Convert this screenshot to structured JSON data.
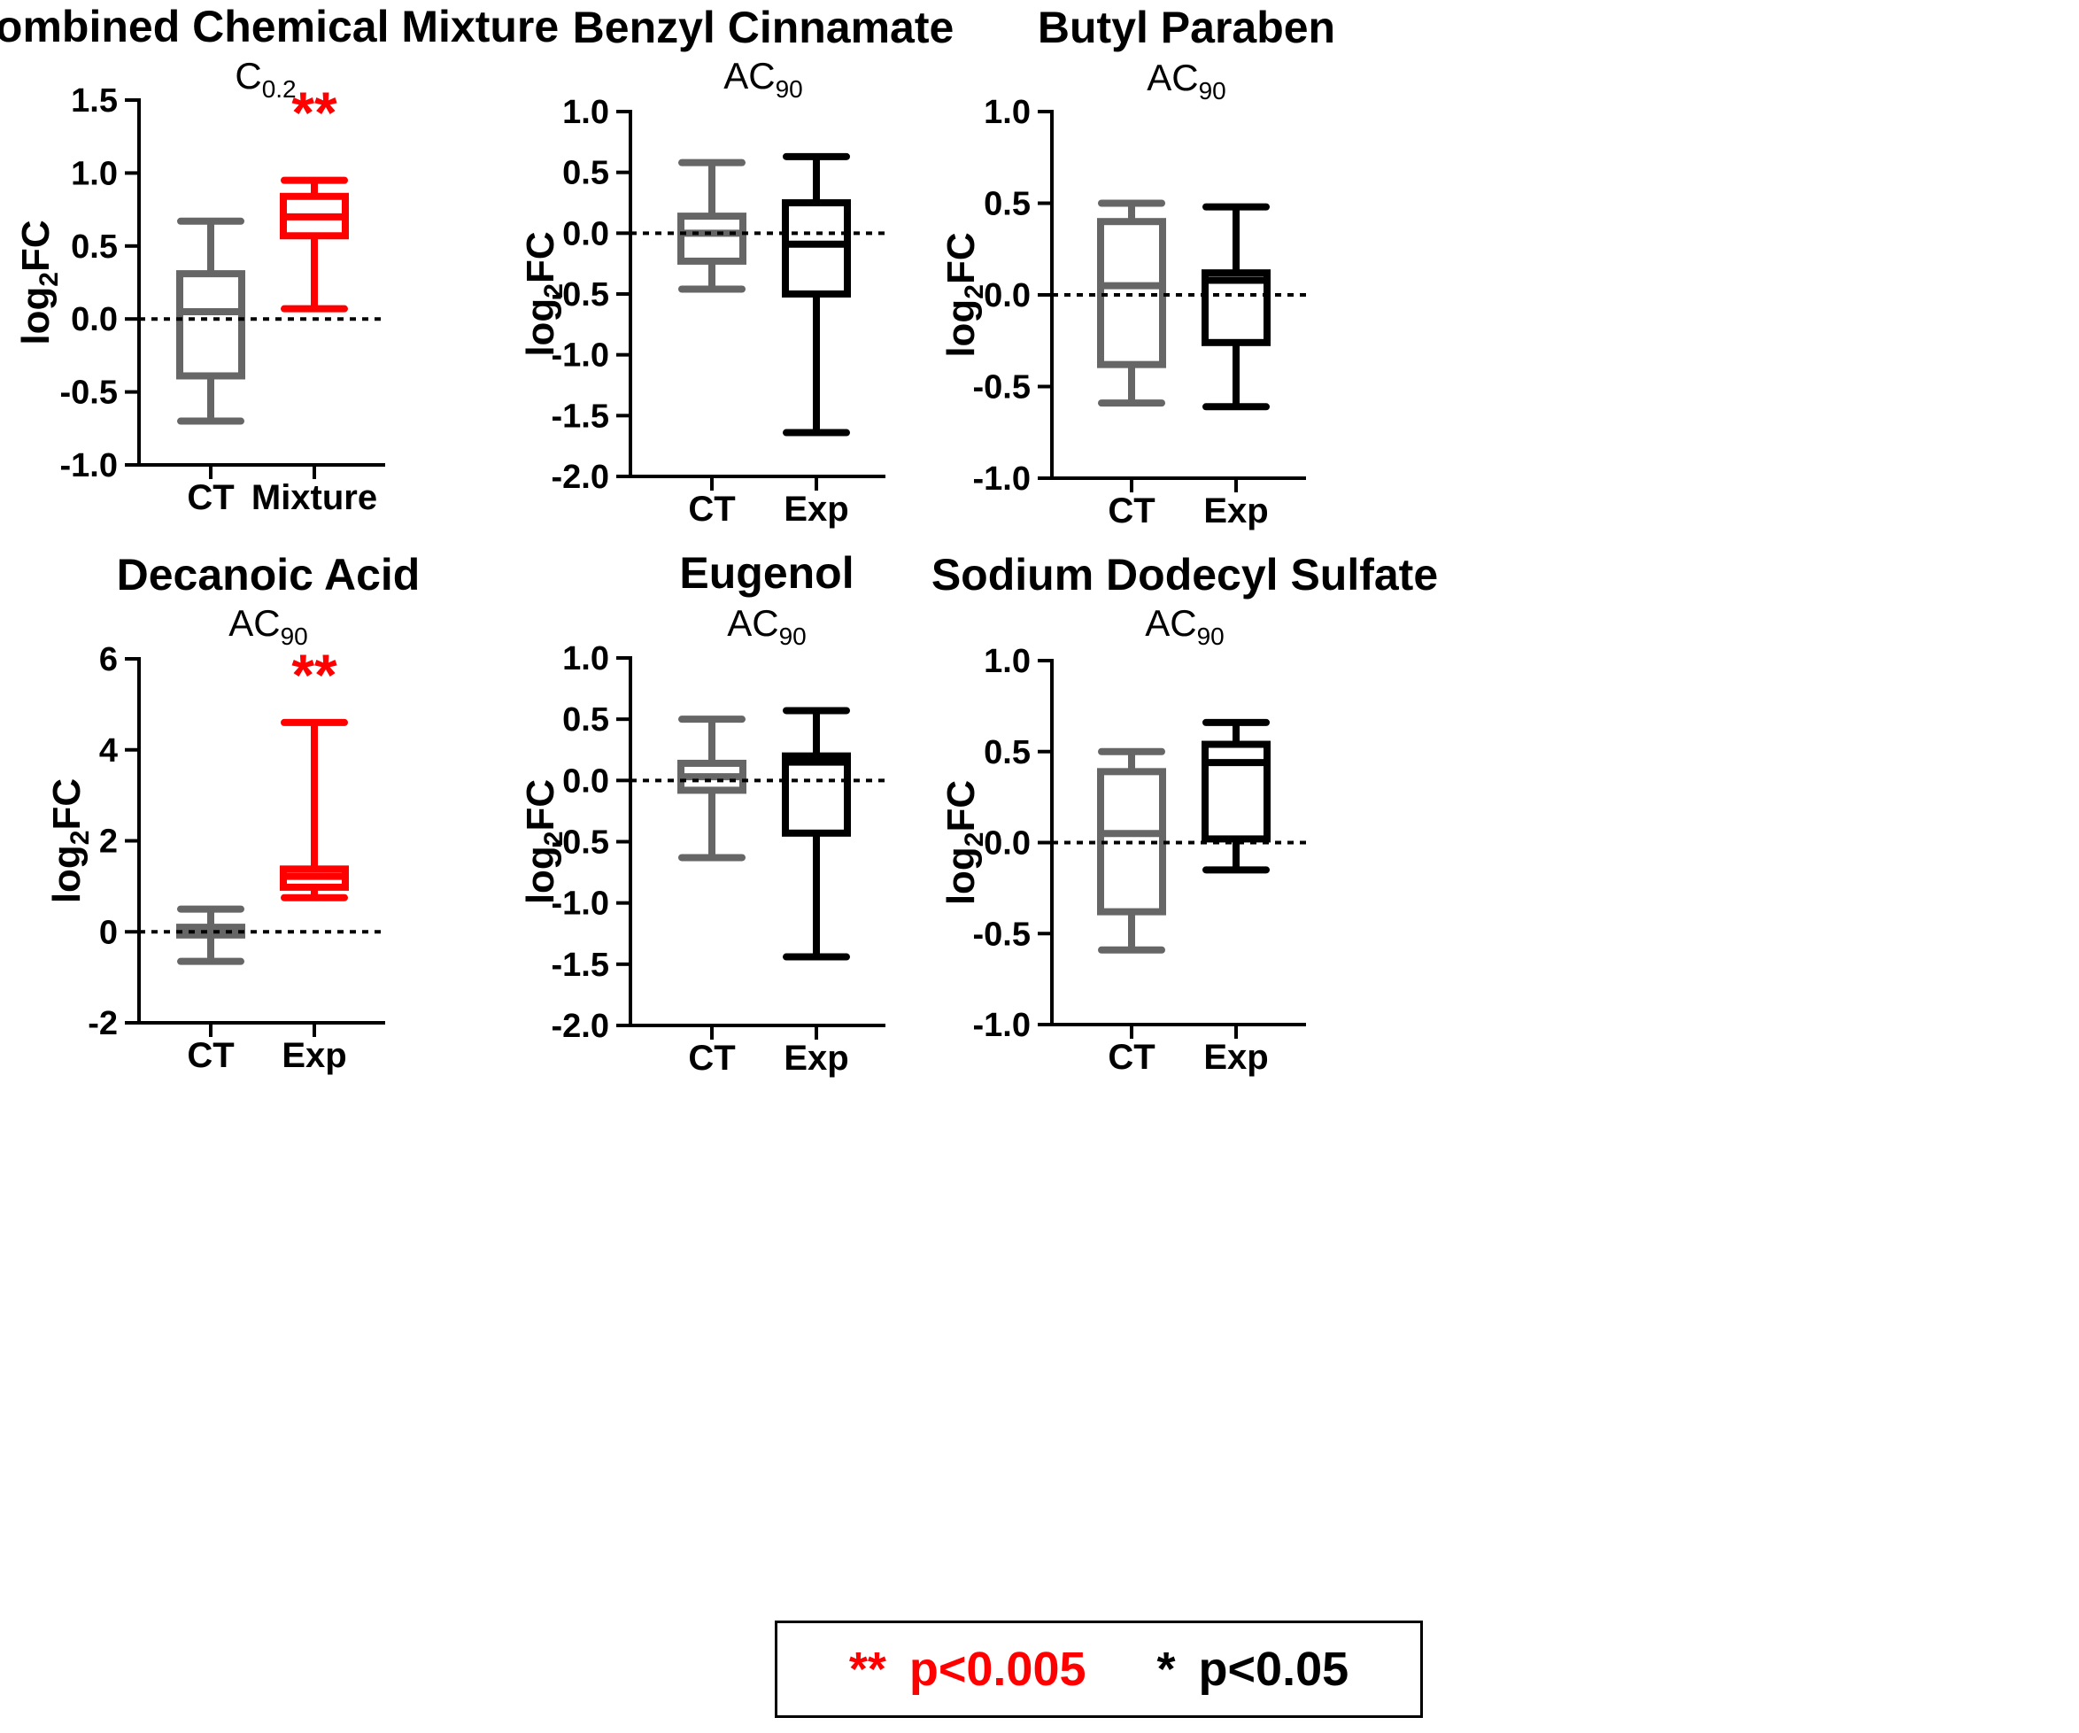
{
  "colors": {
    "control": "#666666",
    "significant": "#ff0000",
    "treatment": "#000000"
  },
  "legend": [
    {
      "symbol": "**",
      "label": "p<0.005",
      "color": "#ff0000"
    },
    {
      "symbol": "*",
      "label": "p<0.05",
      "color": "#000000"
    }
  ],
  "chart_data": [
    {
      "type": "boxplot",
      "title": "Combined Chemical Mixture",
      "subtitle": "C",
      "subtitle_sub": "0.2",
      "ylabel": "log",
      "ylabel_sub": "2",
      "ylabel_tail": "FC",
      "ylim": [
        -1.0,
        1.5
      ],
      "yticks": [
        1.5,
        1.0,
        0.5,
        0.0,
        -0.5,
        -1.0
      ],
      "ytick_labels": [
        "1.5",
        "1.0",
        "0.5",
        "0.0",
        "-0.5",
        "-1.0"
      ],
      "reference_line": 0,
      "categories": [
        "CT",
        "Mixture"
      ],
      "boxes": [
        {
          "name": "CT",
          "min": -0.7,
          "q1": -0.39,
          "median": 0.05,
          "q3": 0.31,
          "max": 0.67,
          "color": "#666666"
        },
        {
          "name": "Mixture",
          "min": 0.07,
          "q1": 0.57,
          "median": 0.7,
          "q3": 0.84,
          "max": 0.95,
          "color": "#ff0000",
          "significance": "**"
        }
      ]
    },
    {
      "type": "boxplot",
      "title": "Benzyl Cinnamate",
      "subtitle": "AC",
      "subtitle_sub": "90",
      "ylabel": "log",
      "ylabel_sub": "2",
      "ylabel_tail": "FC",
      "ylim": [
        -2.0,
        1.0
      ],
      "yticks": [
        1.0,
        0.5,
        0.0,
        -0.5,
        -1.0,
        -1.5,
        -2.0
      ],
      "ytick_labels": [
        "1.0",
        "0.5",
        "0.0",
        "-0.5",
        "-1.0",
        "-1.5",
        "-2.0"
      ],
      "reference_line": 0,
      "categories": [
        "CT",
        "Exp"
      ],
      "boxes": [
        {
          "name": "CT",
          "min": -0.46,
          "q1": -0.23,
          "median": 0.0,
          "q3": 0.14,
          "max": 0.58,
          "color": "#666666"
        },
        {
          "name": "Exp",
          "min": -1.64,
          "q1": -0.5,
          "median": -0.09,
          "q3": 0.25,
          "max": 0.63,
          "color": "#000000"
        }
      ]
    },
    {
      "type": "boxplot",
      "title": "Butyl Paraben",
      "subtitle": "AC",
      "subtitle_sub": "90",
      "ylabel": "log",
      "ylabel_sub": "2",
      "ylabel_tail": "FC",
      "ylim": [
        -1.0,
        1.0
      ],
      "yticks": [
        1.0,
        0.5,
        0.0,
        -0.5,
        -1.0
      ],
      "ytick_labels": [
        "1.0",
        "0.5",
        "0.0",
        "-0.5",
        "-1.0"
      ],
      "reference_line": 0,
      "categories": [
        "CT",
        "Exp"
      ],
      "boxes": [
        {
          "name": "CT",
          "min": -0.59,
          "q1": -0.38,
          "median": 0.05,
          "q3": 0.4,
          "max": 0.5,
          "color": "#666666"
        },
        {
          "name": "Exp",
          "min": -0.61,
          "q1": -0.26,
          "median": 0.08,
          "q3": 0.12,
          "max": 0.48,
          "color": "#000000"
        }
      ]
    },
    {
      "type": "boxplot",
      "title": "Decanoic Acid",
      "subtitle": "AC",
      "subtitle_sub": "90",
      "ylabel": "log",
      "ylabel_sub": "2",
      "ylabel_tail": "FC",
      "ylim": [
        -2,
        6
      ],
      "yticks": [
        6,
        4,
        2,
        0,
        -2
      ],
      "ytick_labels": [
        "6",
        "4",
        "2",
        "0",
        "-2"
      ],
      "reference_line": 0,
      "categories": [
        "CT",
        "Exp"
      ],
      "boxes": [
        {
          "name": "CT",
          "min": -0.65,
          "q1": -0.07,
          "median": 0.03,
          "q3": 0.1,
          "max": 0.5,
          "color": "#666666"
        },
        {
          "name": "Exp",
          "min": 0.75,
          "q1": 0.98,
          "median": 1.22,
          "q3": 1.38,
          "max": 4.6,
          "color": "#ff0000",
          "significance": "**"
        }
      ]
    },
    {
      "type": "boxplot",
      "title": "Eugenol",
      "subtitle": "AC",
      "subtitle_sub": "90",
      "ylabel": "log",
      "ylabel_sub": "2",
      "ylabel_tail": "FC",
      "ylim": [
        -2.0,
        1.0
      ],
      "yticks": [
        1.0,
        0.5,
        0.0,
        -0.5,
        -1.0,
        -1.5,
        -2.0
      ],
      "ytick_labels": [
        "1.0",
        "0.5",
        "0.0",
        "-0.5",
        "-1.0",
        "-1.5",
        "-2.0"
      ],
      "reference_line": 0,
      "categories": [
        "CT",
        "Exp"
      ],
      "boxes": [
        {
          "name": "CT",
          "min": -0.63,
          "q1": -0.08,
          "median": 0.03,
          "q3": 0.14,
          "max": 0.5,
          "color": "#666666"
        },
        {
          "name": "Exp",
          "min": -1.44,
          "q1": -0.43,
          "median": 0.15,
          "q3": 0.2,
          "max": 0.57,
          "color": "#000000"
        }
      ]
    },
    {
      "type": "boxplot",
      "title": "Sodium Dodecyl Sulfate",
      "subtitle": "AC",
      "subtitle_sub": "90",
      "ylabel": "log",
      "ylabel_sub": "2",
      "ylabel_tail": "FC",
      "ylim": [
        -1.0,
        1.0
      ],
      "yticks": [
        1.0,
        0.5,
        0.0,
        -0.5,
        -1.0
      ],
      "ytick_labels": [
        "1.0",
        "0.5",
        "0.0",
        "-0.5",
        "-1.0"
      ],
      "reference_line": 0,
      "categories": [
        "CT",
        "Exp"
      ],
      "boxes": [
        {
          "name": "CT",
          "min": -0.59,
          "q1": -0.38,
          "median": 0.05,
          "q3": 0.39,
          "max": 0.5,
          "color": "#666666"
        },
        {
          "name": "Exp",
          "min": -0.15,
          "q1": 0.02,
          "median": 0.44,
          "q3": 0.54,
          "max": 0.66,
          "color": "#000000"
        }
      ]
    }
  ]
}
